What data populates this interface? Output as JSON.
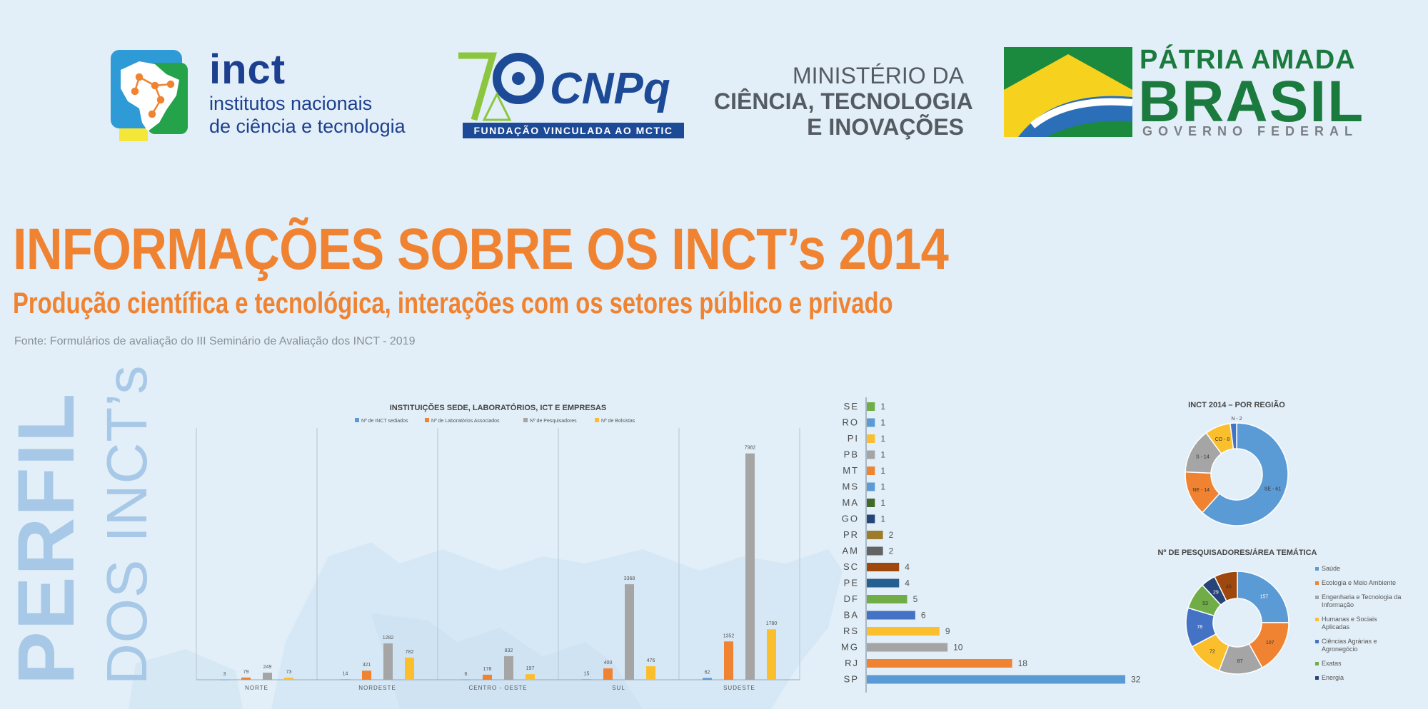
{
  "header": {
    "inct_logo": {
      "word": "inct",
      "line1": "institutos nacionais",
      "line2": "de ciência e tecnologia"
    },
    "cnpq_logo": {
      "number": "70",
      "word": "CNPq",
      "band": "FUNDAÇÃO VINCULADA AO MCTIC"
    },
    "mcti_logo": {
      "line1": "MINISTÉRIO DA",
      "line2": "CIÊNCIA, TECNOLOGIA",
      "line3": "E INOVAÇÕES"
    },
    "gov_logo": {
      "line1": "PÁTRIA AMADA",
      "line2": "BRASIL",
      "line3": "GOVERNO FEDERAL"
    }
  },
  "title": "INFORMAÇÕES SOBRE OS INCT’s 2014",
  "subtitle": "Produção científica e tecnológica, interações com os setores público e privado",
  "source": "Fonte: Formulários de avaliação do III Seminário de Avaliação dos INCT - 2019",
  "side_title": {
    "bold": "PERFIL",
    "light": "DOS INCT’s"
  },
  "colors": {
    "orange": "#f08331",
    "blue": "#5b9bd5",
    "gray": "#a5a5a5",
    "yellow": "#fbbf2d",
    "light_text": "#a7c8e7"
  },
  "chart_data": [
    {
      "type": "bar",
      "title": "INSTITUIÇÕES SEDE, LABORATÓRIOS, ICT E EMPRESAS",
      "categories": [
        "NORTE",
        "NORDESTE",
        "CENTRO - OESTE",
        "SUL",
        "SUDESTE"
      ],
      "series": [
        {
          "name": "Nº de INCT sediados",
          "color": "#5b9bd5",
          "values": [
            3,
            14,
            6,
            15,
            62
          ]
        },
        {
          "name": "Nº de Laboratórios Associados",
          "color": "#f08331",
          "values": [
            79,
            321,
            178,
            400,
            1352
          ]
        },
        {
          "name": "Nº de Pesquisadores",
          "color": "#a5a5a5",
          "values": [
            249,
            1282,
            832,
            3368,
            7982
          ]
        },
        {
          "name": "Nº de Bolsistas",
          "color": "#fbbf2d",
          "values": [
            73,
            782,
            197,
            476,
            1780
          ]
        }
      ],
      "ylim": [
        0,
        8000
      ],
      "legend": "top",
      "grid": false
    },
    {
      "type": "bar",
      "orientation": "horizontal",
      "categories": [
        "SE",
        "RO",
        "PI",
        "PB",
        "MT",
        "MS",
        "MA",
        "GO",
        "PR",
        "AM",
        "SC",
        "PE",
        "DF",
        "BA",
        "RS",
        "MG",
        "RJ",
        "SP"
      ],
      "values": [
        1,
        1,
        1,
        1,
        1,
        1,
        1,
        1,
        2,
        2,
        4,
        4,
        5,
        6,
        9,
        10,
        18,
        32
      ],
      "colors": [
        "#70ad47",
        "#5b9bd5",
        "#fbbf2d",
        "#a5a5a5",
        "#f08331",
        "#5b9bd5",
        "#43682b",
        "#264478",
        "#9e7c2b",
        "#636363",
        "#9e480e",
        "#255e91",
        "#70ad47",
        "#4472c4",
        "#fbbf2d",
        "#a5a5a5",
        "#f08331",
        "#5b9bd5"
      ],
      "xlim": [
        0,
        32
      ]
    },
    {
      "type": "pie",
      "donut": true,
      "title": "INCT 2014 – POR REGIÃO",
      "labels": [
        "SE - 61",
        "NE - 14",
        "S - 14",
        "CO - 8",
        "N - 2"
      ],
      "values": [
        61,
        14,
        14,
        8,
        2
      ],
      "colors": [
        "#5b9bd5",
        "#f08331",
        "#a5a5a5",
        "#fbbf2d",
        "#4472c4"
      ]
    },
    {
      "type": "pie",
      "donut": true,
      "title": "Nº DE PESQUISADORES/ÁREA TEMÁTICA",
      "labels": [
        "Saúde",
        "Ecologia e Meio Ambiente",
        "Engenharia e Tecnologia da Informação",
        "Humanas e Sociais Aplicadas",
        "Ciências Agrárias e Agronegócio",
        "Exatas",
        "Energia",
        ""
      ],
      "values": [
        157,
        107,
        87,
        72,
        78,
        53,
        29,
        46
      ],
      "colors": [
        "#5b9bd5",
        "#f08331",
        "#a5a5a5",
        "#fbbf2d",
        "#4472c4",
        "#70ad47",
        "#264478",
        "#9e480e"
      ],
      "legend": "right"
    }
  ]
}
